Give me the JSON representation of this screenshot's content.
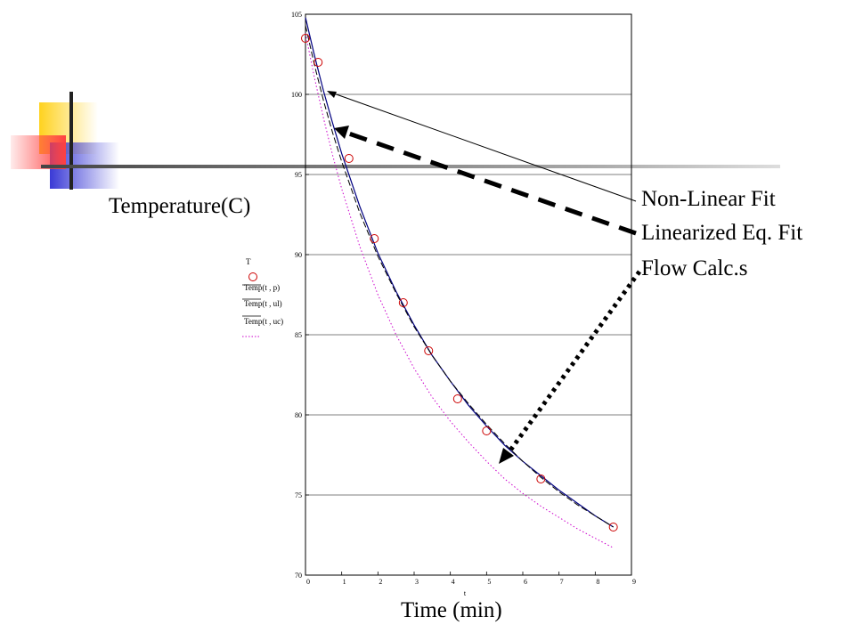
{
  "slide": {
    "y_title": "Temperature(C)",
    "x_title": "Time (min)",
    "annotations": [
      "Non-Linear Fit",
      "Linearized Eq. Fit",
      "Flow Calc.s"
    ]
  },
  "legend": {
    "entries": [
      "T",
      "Temp(t , p)",
      "Temp(t , ul)",
      "Temp(t , uc)"
    ]
  },
  "colors": {
    "data_points": "#cc0000",
    "nonlinear_fit": "#000080",
    "linearized_fit": "#000000",
    "flow_calc": "#cc00cc",
    "deco_yellow": "#ffd21e",
    "deco_blue": "#3a3ad6",
    "deco_red": "#ff4040"
  },
  "chart_data": {
    "type": "scatter",
    "xlabel": "t",
    "ylabel": "",
    "xlim": [
      0,
      9
    ],
    "ylim": [
      70,
      105
    ],
    "x_ticks": [
      "0",
      "1",
      "2",
      "3",
      "4",
      "5",
      "6",
      "7",
      "8",
      "9"
    ],
    "y_ticks": [
      "70",
      "75",
      "80",
      "85",
      "90",
      "95",
      "100",
      "105"
    ],
    "grid": true,
    "series": [
      {
        "name": "T",
        "kind": "points",
        "x": [
          0.0,
          0.35,
          1.2,
          1.9,
          2.7,
          3.4,
          4.2,
          5.0,
          6.5,
          8.5
        ],
        "y": [
          103.5,
          102.0,
          96.0,
          91.0,
          87.0,
          84.0,
          81.0,
          79.0,
          76.0,
          73.0
        ]
      },
      {
        "name": "Temp(t , p)",
        "kind": "line",
        "x": [
          0,
          0.25,
          0.5,
          0.75,
          1,
          1.5,
          2,
          2.5,
          3,
          3.5,
          4,
          4.5,
          5,
          5.5,
          6,
          6.5,
          7,
          7.5,
          8,
          8.5
        ],
        "y": [
          104.8,
          102.4,
          100.2,
          98.2,
          96.3,
          93.0,
          90.1,
          87.7,
          85.6,
          83.7,
          82.1,
          80.6,
          79.3,
          78.1,
          77.1,
          76.2,
          75.3,
          74.5,
          73.7,
          73.0
        ]
      },
      {
        "name": "Temp(t , ul)",
        "kind": "line",
        "x": [
          0,
          0.25,
          0.5,
          0.75,
          1,
          1.5,
          2,
          2.5,
          3,
          3.5,
          4,
          4.5,
          5,
          5.5,
          6,
          6.5,
          7,
          7.5,
          8,
          8.5
        ],
        "y": [
          104.3,
          101.8,
          99.6,
          97.6,
          95.8,
          92.6,
          89.9,
          87.6,
          85.5,
          83.7,
          82.1,
          80.7,
          79.4,
          78.2,
          77.1,
          76.1,
          75.2,
          74.4,
          73.7,
          73.0
        ]
      },
      {
        "name": "Temp(t , uc)",
        "kind": "line",
        "x": [
          0,
          0.25,
          0.5,
          0.75,
          1,
          1.5,
          2,
          2.5,
          3,
          3.5,
          4,
          4.5,
          5,
          5.5,
          6,
          6.5,
          7,
          7.5,
          8,
          8.5
        ],
        "y": [
          103.8,
          101.0,
          98.5,
          96.2,
          94.1,
          90.5,
          87.5,
          85.0,
          82.9,
          81.1,
          79.6,
          78.3,
          77.1,
          76.0,
          75.1,
          74.3,
          73.6,
          72.9,
          72.3,
          71.7
        ]
      }
    ]
  }
}
